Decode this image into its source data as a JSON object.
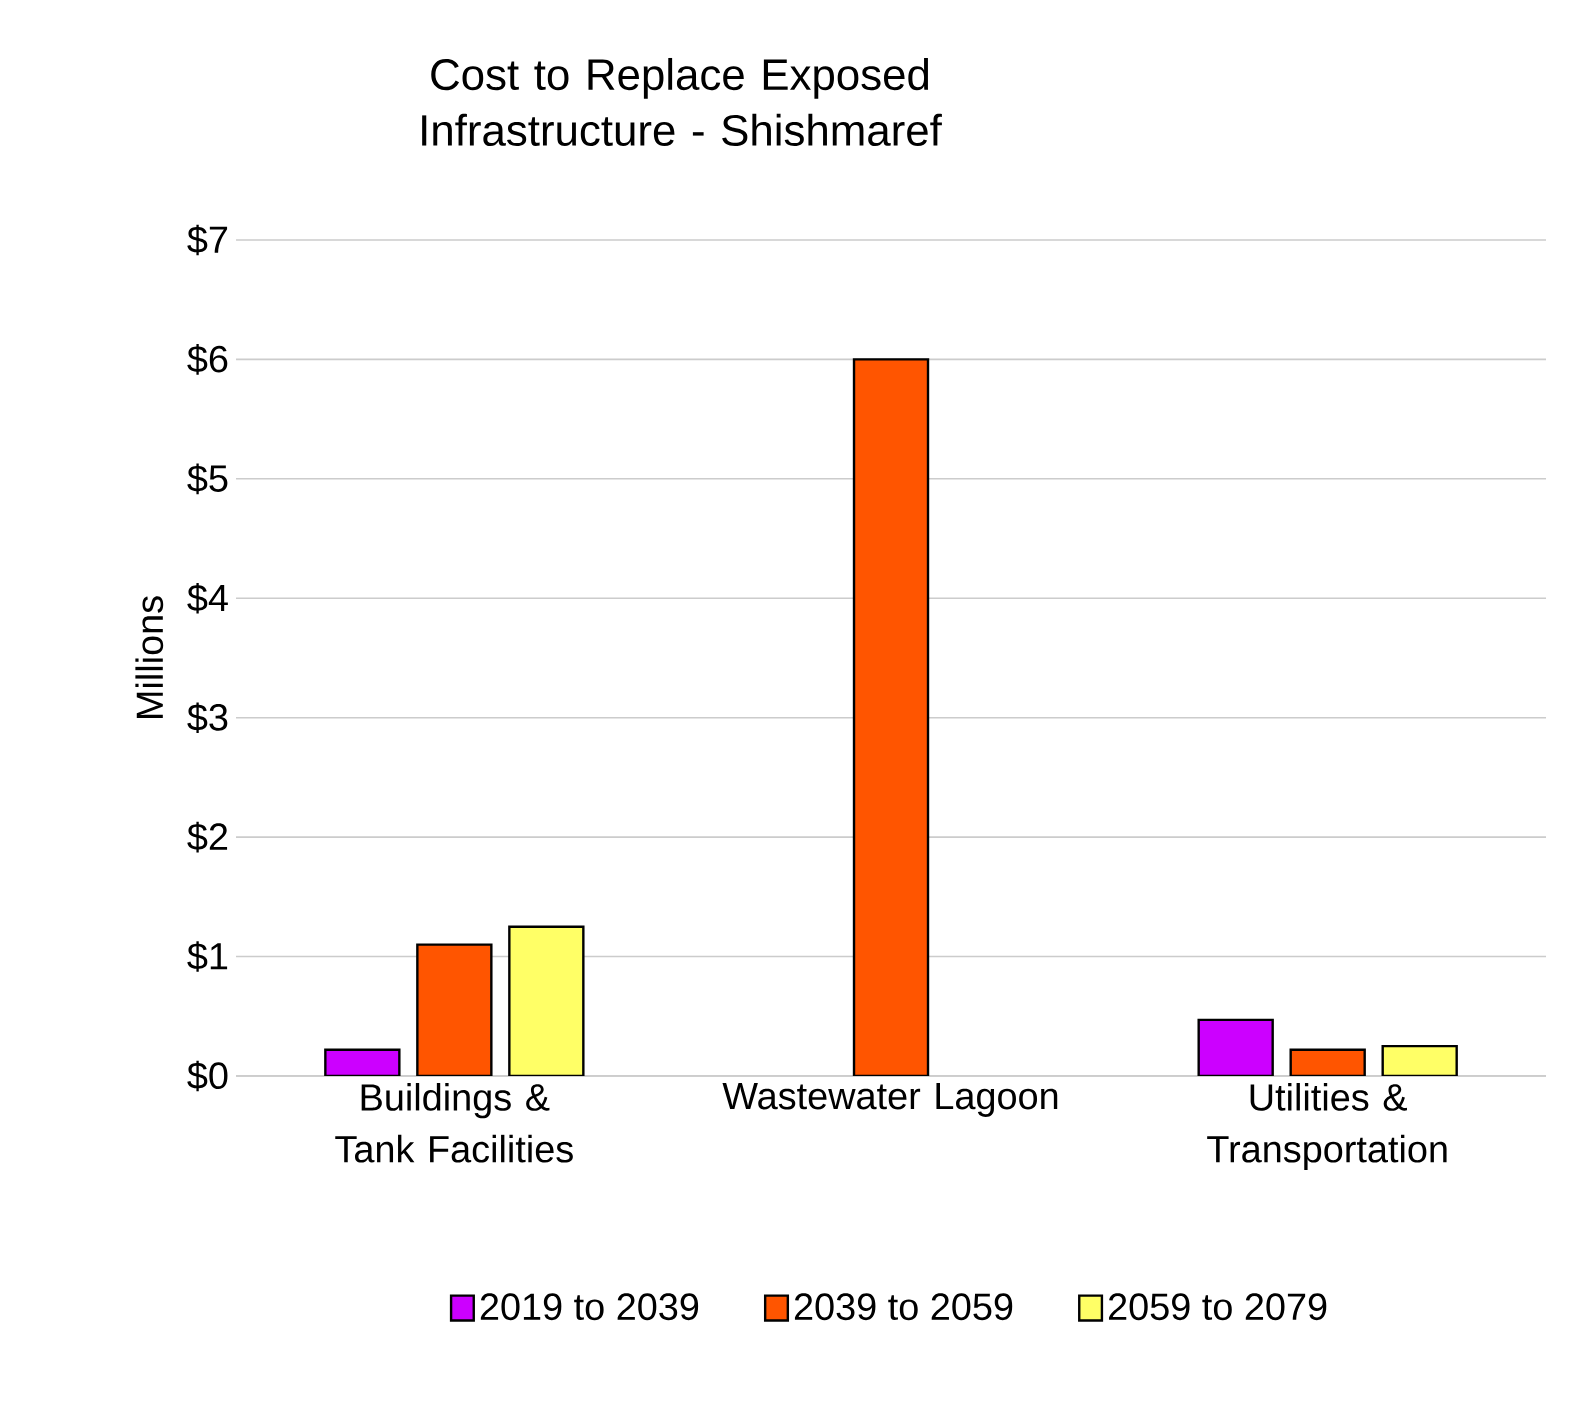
{
  "chart_data": {
    "type": "bar",
    "title": "Cost to Replace Exposed Infrastructure - Shishmaref",
    "ylabel": "Millions",
    "categories": [
      "Buildings & Tank Facilities",
      "Wastewater Lagoon",
      "Utilities & Transportation"
    ],
    "series": [
      {
        "name": "2019 to 2039",
        "color": "#cc00ff",
        "values": [
          0.22,
          null,
          0.47
        ]
      },
      {
        "name": "2039 to 2059",
        "color": "#ff5500",
        "values": [
          1.1,
          6.0,
          0.22
        ]
      },
      {
        "name": "2059 to 2079",
        "color": "#ffff66",
        "values": [
          1.25,
          null,
          0.25
        ]
      }
    ],
    "ylim": [
      0,
      7
    ],
    "yticks": [
      {
        "value": 0,
        "label": "$0"
      },
      {
        "value": 1,
        "label": "$1"
      },
      {
        "value": 2,
        "label": "$2"
      },
      {
        "value": 3,
        "label": "$3"
      },
      {
        "value": 4,
        "label": "$4"
      },
      {
        "value": 5,
        "label": "$5"
      },
      {
        "value": 6,
        "label": "$6"
      },
      {
        "value": 7,
        "label": "$7"
      }
    ],
    "grid": "y",
    "legend": "bottom"
  }
}
